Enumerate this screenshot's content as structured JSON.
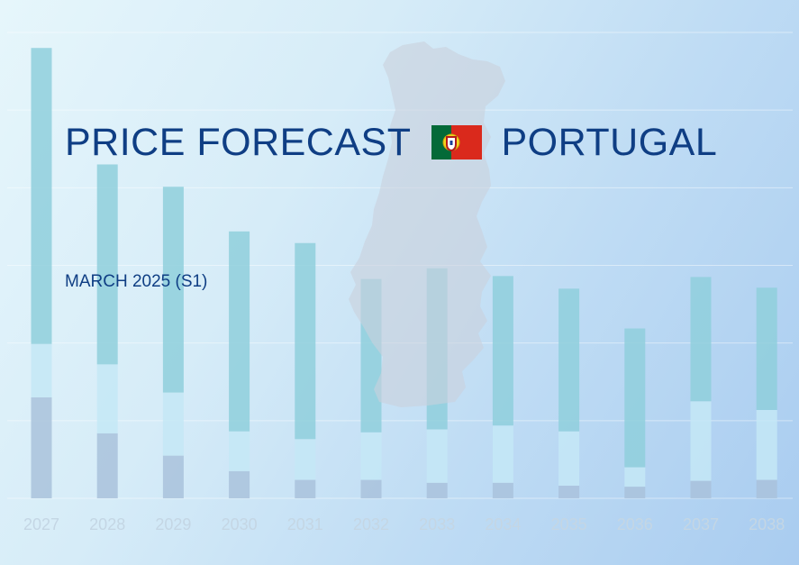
{
  "title": {
    "left": "PRICE FORECAST",
    "right": "PORTUGAL",
    "flag_icon": "portugal-flag-icon"
  },
  "subtitle": "MARCH 2025 (S1)",
  "colors": {
    "background_start": "#e6f6fb",
    "background_end": "#a9ccf0",
    "title_text": "#0f3e84",
    "flag_green": "#046a38",
    "flag_red": "#da291c",
    "map_fill": "#c9d0dc",
    "bar_bottom": "#a9c2dc",
    "bar_middle": "#c4e8f6",
    "bar_top": "#8fcfdc"
  },
  "chart_data": {
    "type": "bar",
    "stacked": true,
    "categories": [
      "2027",
      "2028",
      "2029",
      "2030",
      "2031",
      "2032",
      "2033",
      "2034",
      "2035",
      "2036",
      "2037",
      "2038"
    ],
    "series": [
      {
        "values": [
          104,
          67,
          44,
          28,
          19,
          19,
          16,
          16,
          13,
          12,
          18,
          19
        ]
      },
      {
        "values": [
          55,
          71,
          65,
          41,
          42,
          49,
          55,
          59,
          56,
          20,
          82,
          72
        ]
      },
      {
        "values": [
          305,
          206,
          212,
          206,
          202,
          158,
          166,
          154,
          147,
          143,
          128,
          126
        ]
      }
    ],
    "ylim": [
      0,
      480
    ],
    "grid": true,
    "legend": "none"
  }
}
